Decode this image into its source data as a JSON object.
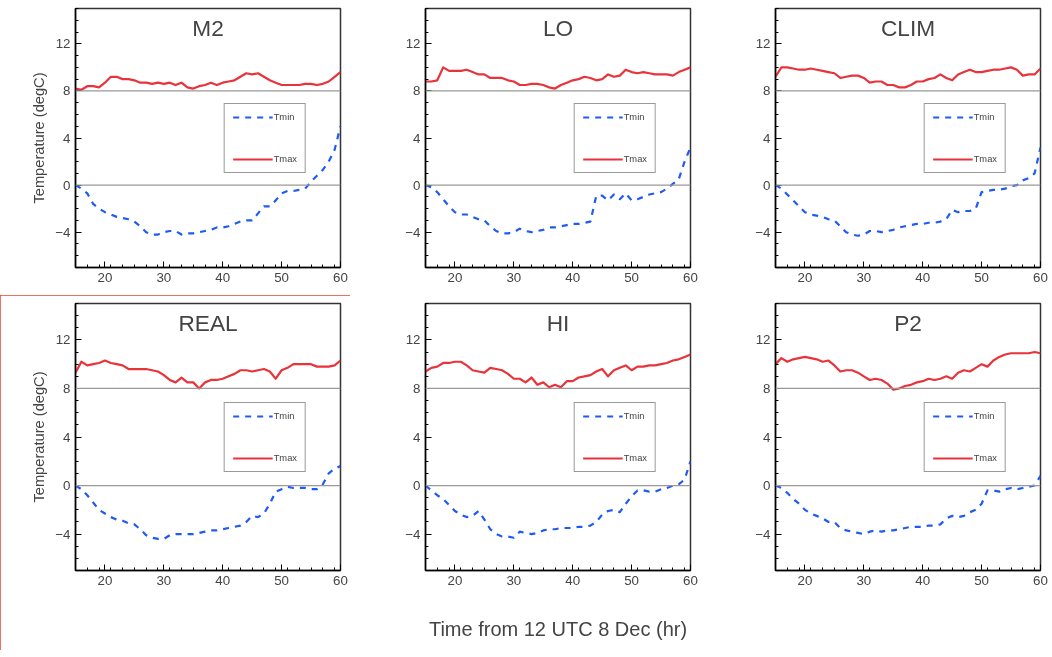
{
  "chart_data": [
    {
      "type": "line",
      "title": "M2",
      "ylabel": "Temperature (degC)",
      "x": [
        15,
        16,
        17,
        18,
        19,
        20,
        21,
        22,
        23,
        24,
        25,
        26,
        27,
        28,
        29,
        30,
        31,
        32,
        33,
        34,
        35,
        36,
        37,
        38,
        39,
        40,
        41,
        42,
        43,
        44,
        45,
        46,
        47,
        48,
        49,
        50,
        51,
        52,
        53,
        54,
        55,
        56,
        57,
        58,
        59,
        60
      ],
      "xlim": [
        15,
        60
      ],
      "ylim": [
        -7,
        15
      ],
      "xticks": [
        20,
        30,
        40,
        50,
        60
      ],
      "yticks": [
        -4,
        0,
        4,
        8,
        12
      ],
      "grid": false,
      "legend": "right",
      "marker": "none",
      "ref_lines": [
        {
          "axis": "y",
          "value": 0,
          "color": "#999999"
        },
        {
          "axis": "y",
          "value": 8,
          "color": "#999999"
        }
      ],
      "series": [
        {
          "name": "Tmin",
          "color": "#1f5af2",
          "line_style": "dashed",
          "values": [
            0,
            -0.3,
            -0.7,
            -1.6,
            -2.0,
            -2.3,
            -2.5,
            -2.7,
            -2.8,
            -2.9,
            -3.1,
            -3.5,
            -4.0,
            -4.2,
            -4.2,
            -4.0,
            -3.9,
            -3.9,
            -4.2,
            -4.1,
            -4.1,
            -4.0,
            -3.9,
            -3.8,
            -3.6,
            -3.6,
            -3.5,
            -3.3,
            -3.1,
            -3.0,
            -3.0,
            -2.4,
            -1.8,
            -1.8,
            -1.3,
            -0.7,
            -0.5,
            -0.5,
            -0.4,
            -0.3,
            0.3,
            0.8,
            1.3,
            2.0,
            3.0,
            5.0
          ]
        },
        {
          "name": "Tmax",
          "color": "#e8333a",
          "line_style": "solid",
          "values": [
            8.2,
            8.1,
            8.4,
            8.4,
            8.3,
            8.7,
            9.2,
            9.2,
            9.0,
            9.0,
            8.9,
            8.7,
            8.7,
            8.6,
            8.7,
            8.6,
            8.7,
            8.5,
            8.7,
            8.3,
            8.2,
            8.4,
            8.5,
            8.7,
            8.5,
            8.7,
            8.8,
            8.9,
            9.2,
            9.5,
            9.4,
            9.5,
            9.2,
            8.9,
            8.7,
            8.5,
            8.5,
            8.5,
            8.5,
            8.6,
            8.6,
            8.5,
            8.6,
            8.8,
            9.2,
            9.6
          ]
        }
      ]
    },
    {
      "type": "line",
      "title": "LO",
      "x": [
        15,
        16,
        17,
        18,
        19,
        20,
        21,
        22,
        23,
        24,
        25,
        26,
        27,
        28,
        29,
        30,
        31,
        32,
        33,
        34,
        35,
        36,
        37,
        38,
        39,
        40,
        41,
        42,
        43,
        44,
        45,
        46,
        47,
        48,
        49,
        50,
        51,
        52,
        53,
        54,
        55,
        56,
        57,
        58,
        59,
        60
      ],
      "xlim": [
        15,
        60
      ],
      "ylim": [
        -7,
        15
      ],
      "xticks": [
        20,
        30,
        40,
        50,
        60
      ],
      "yticks": [
        -4,
        0,
        4,
        8,
        12
      ],
      "grid": false,
      "legend": "right",
      "marker": "none",
      "ref_lines": [
        {
          "axis": "y",
          "value": 0,
          "color": "#999999"
        },
        {
          "axis": "y",
          "value": 8,
          "color": "#999999"
        }
      ],
      "series": [
        {
          "name": "Tmin",
          "color": "#1f5af2",
          "line_style": "dashed",
          "values": [
            0,
            -0.2,
            -0.6,
            -1.2,
            -1.8,
            -2.3,
            -2.5,
            -2.5,
            -2.7,
            -2.9,
            -3.0,
            -3.5,
            -3.9,
            -4.1,
            -4.1,
            -4.0,
            -3.7,
            -3.9,
            -4.0,
            -3.9,
            -3.8,
            -3.6,
            -3.6,
            -3.5,
            -3.4,
            -3.3,
            -3.3,
            -3.2,
            -3.1,
            -0.9,
            -0.9,
            -1.3,
            -0.8,
            -1.2,
            -0.7,
            -1.3,
            -1.2,
            -1.0,
            -0.8,
            -0.7,
            -0.6,
            -0.3,
            0.1,
            0.5,
            2.0,
            3.2
          ]
        },
        {
          "name": "Tmax",
          "color": "#e8333a",
          "line_style": "solid",
          "values": [
            8.8,
            8.8,
            8.9,
            10.0,
            9.7,
            9.7,
            9.7,
            9.8,
            9.6,
            9.4,
            9.4,
            9.1,
            9.1,
            9.1,
            8.9,
            8.8,
            8.5,
            8.5,
            8.6,
            8.6,
            8.5,
            8.3,
            8.2,
            8.5,
            8.7,
            8.9,
            9.0,
            9.2,
            9.1,
            8.9,
            9.0,
            9.4,
            9.2,
            9.3,
            9.8,
            9.6,
            9.5,
            9.6,
            9.5,
            9.4,
            9.4,
            9.4,
            9.3,
            9.6,
            9.8,
            10.0
          ]
        }
      ]
    },
    {
      "type": "line",
      "title": "CLIM",
      "x": [
        15,
        16,
        17,
        18,
        19,
        20,
        21,
        22,
        23,
        24,
        25,
        26,
        27,
        28,
        29,
        30,
        31,
        32,
        33,
        34,
        35,
        36,
        37,
        38,
        39,
        40,
        41,
        42,
        43,
        44,
        45,
        46,
        47,
        48,
        49,
        50,
        51,
        52,
        53,
        54,
        55,
        56,
        57,
        58,
        59,
        60
      ],
      "xlim": [
        15,
        60
      ],
      "ylim": [
        -7,
        15
      ],
      "xticks": [
        20,
        30,
        40,
        50,
        60
      ],
      "yticks": [
        -4,
        0,
        4,
        8,
        12
      ],
      "grid": false,
      "legend": "right",
      "marker": "none",
      "ref_lines": [
        {
          "axis": "y",
          "value": 0,
          "color": "#999999"
        },
        {
          "axis": "y",
          "value": 8,
          "color": "#999999"
        }
      ],
      "series": [
        {
          "name": "Tmin",
          "color": "#1f5af2",
          "line_style": "dashed",
          "values": [
            0,
            -0.3,
            -0.8,
            -1.3,
            -1.8,
            -2.3,
            -2.5,
            -2.6,
            -2.7,
            -2.9,
            -3.0,
            -3.5,
            -4.0,
            -4.2,
            -4.3,
            -4.2,
            -3.9,
            -3.9,
            -4.0,
            -3.9,
            -3.8,
            -3.6,
            -3.5,
            -3.4,
            -3.3,
            -3.3,
            -3.2,
            -3.2,
            -3.1,
            -2.9,
            -2.1,
            -2.3,
            -2.2,
            -2.2,
            -2.0,
            -0.6,
            -0.5,
            -0.4,
            -0.4,
            -0.3,
            -0.1,
            0.0,
            0.4,
            0.6,
            1.0,
            3.2
          ]
        },
        {
          "name": "Tmax",
          "color": "#e8333a",
          "line_style": "solid",
          "values": [
            9.2,
            10.0,
            10.0,
            9.9,
            9.8,
            9.8,
            9.9,
            9.8,
            9.7,
            9.6,
            9.5,
            9.1,
            9.2,
            9.3,
            9.3,
            9.1,
            8.7,
            8.8,
            8.8,
            8.5,
            8.5,
            8.3,
            8.3,
            8.5,
            8.8,
            8.8,
            9.0,
            9.1,
            9.4,
            9.1,
            8.9,
            9.4,
            9.6,
            9.8,
            9.6,
            9.6,
            9.7,
            9.8,
            9.8,
            9.9,
            10.0,
            9.8,
            9.3,
            9.4,
            9.4,
            9.9
          ]
        }
      ]
    },
    {
      "type": "line",
      "title": "REAL",
      "ylabel": "Temperature (degC)",
      "x": [
        15,
        16,
        17,
        18,
        19,
        20,
        21,
        22,
        23,
        24,
        25,
        26,
        27,
        28,
        29,
        30,
        31,
        32,
        33,
        34,
        35,
        36,
        37,
        38,
        39,
        40,
        41,
        42,
        43,
        44,
        45,
        46,
        47,
        48,
        49,
        50,
        51,
        52,
        53,
        54,
        55,
        56,
        57,
        58,
        59,
        60
      ],
      "xlim": [
        15,
        60
      ],
      "ylim": [
        -7,
        15
      ],
      "xticks": [
        20,
        30,
        40,
        50,
        60
      ],
      "yticks": [
        -4,
        0,
        4,
        8,
        12
      ],
      "grid": false,
      "legend": "right",
      "marker": "none",
      "ref_lines": [
        {
          "axis": "y",
          "value": 0,
          "color": "#999999"
        },
        {
          "axis": "y",
          "value": 8,
          "color": "#999999"
        }
      ],
      "series": [
        {
          "name": "Tmin",
          "color": "#1f5af2",
          "line_style": "dashed",
          "values": [
            0,
            -0.3,
            -0.8,
            -1.4,
            -2.0,
            -2.3,
            -2.6,
            -2.8,
            -2.9,
            -3.1,
            -3.2,
            -3.6,
            -4.1,
            -4.3,
            -4.4,
            -4.4,
            -4.1,
            -4.0,
            -4.0,
            -4.0,
            -4.0,
            -3.9,
            -3.8,
            -3.7,
            -3.7,
            -3.6,
            -3.5,
            -3.4,
            -3.3,
            -3.0,
            -2.5,
            -2.6,
            -2.3,
            -1.5,
            -0.5,
            -0.3,
            -0.1,
            -0.2,
            -0.2,
            -0.2,
            -0.3,
            -0.3,
            0.1,
            1.0,
            1.4,
            1.6
          ]
        },
        {
          "name": "Tmax",
          "color": "#e8333a",
          "line_style": "solid",
          "values": [
            9.3,
            10.2,
            9.9,
            10.0,
            10.1,
            10.3,
            10.1,
            10.0,
            9.9,
            9.6,
            9.6,
            9.6,
            9.6,
            9.5,
            9.4,
            9.1,
            8.7,
            8.5,
            8.9,
            8.5,
            8.5,
            8.0,
            8.5,
            8.7,
            8.7,
            8.8,
            9.0,
            9.2,
            9.5,
            9.5,
            9.4,
            9.5,
            9.6,
            9.4,
            8.8,
            9.5,
            9.7,
            10.0,
            10.0,
            10.0,
            10.0,
            9.8,
            9.8,
            9.8,
            9.9,
            10.3
          ]
        }
      ]
    },
    {
      "type": "line",
      "title": "HI",
      "xlabel": "Time from 12 UTC 8 Dec (hr)",
      "x": [
        15,
        16,
        17,
        18,
        19,
        20,
        21,
        22,
        23,
        24,
        25,
        26,
        27,
        28,
        29,
        30,
        31,
        32,
        33,
        34,
        35,
        36,
        37,
        38,
        39,
        40,
        41,
        42,
        43,
        44,
        45,
        46,
        47,
        48,
        49,
        50,
        51,
        52,
        53,
        54,
        55,
        56,
        57,
        58,
        59,
        60
      ],
      "xlim": [
        15,
        60
      ],
      "ylim": [
        -7,
        15
      ],
      "xticks": [
        20,
        30,
        40,
        50,
        60
      ],
      "yticks": [
        -4,
        0,
        4,
        8,
        12
      ],
      "grid": false,
      "legend": "right",
      "marker": "none",
      "ref_lines": [
        {
          "axis": "y",
          "value": 0,
          "color": "#999999"
        },
        {
          "axis": "y",
          "value": 8,
          "color": "#999999"
        }
      ],
      "series": [
        {
          "name": "Tmin",
          "color": "#1f5af2",
          "line_style": "dashed",
          "values": [
            0,
            -0.4,
            -0.8,
            -1.1,
            -1.6,
            -2.1,
            -2.4,
            -2.6,
            -2.5,
            -2.1,
            -2.8,
            -3.6,
            -4.0,
            -4.2,
            -4.2,
            -4.3,
            -3.8,
            -3.9,
            -4.0,
            -3.9,
            -3.7,
            -3.6,
            -3.6,
            -3.5,
            -3.5,
            -3.5,
            -3.4,
            -3.4,
            -3.3,
            -3.0,
            -2.4,
            -2.1,
            -2.0,
            -2.2,
            -1.5,
            -0.9,
            -0.4,
            -0.4,
            -0.5,
            -0.5,
            -0.3,
            -0.2,
            0.0,
            0.1,
            0.5,
            2.0
          ]
        },
        {
          "name": "Tmax",
          "color": "#e8333a",
          "line_style": "solid",
          "values": [
            9.4,
            9.7,
            9.8,
            10.1,
            10.1,
            10.2,
            10.2,
            9.9,
            9.5,
            9.4,
            9.3,
            9.7,
            9.6,
            9.5,
            9.2,
            8.8,
            8.8,
            8.5,
            8.9,
            8.3,
            8.5,
            8.1,
            8.3,
            8.1,
            8.6,
            8.6,
            8.9,
            9.0,
            9.1,
            9.4,
            9.6,
            9.0,
            9.5,
            9.7,
            9.9,
            9.5,
            9.8,
            9.8,
            9.9,
            9.9,
            10.0,
            10.1,
            10.3,
            10.4,
            10.6,
            10.8
          ]
        }
      ]
    },
    {
      "type": "line",
      "title": "P2",
      "x": [
        15,
        16,
        17,
        18,
        19,
        20,
        21,
        22,
        23,
        24,
        25,
        26,
        27,
        28,
        29,
        30,
        31,
        32,
        33,
        34,
        35,
        36,
        37,
        38,
        39,
        40,
        41,
        42,
        43,
        44,
        45,
        46,
        47,
        48,
        49,
        50,
        51,
        52,
        53,
        54,
        55,
        56,
        57,
        58,
        59,
        60
      ],
      "xlim": [
        15,
        60
      ],
      "ylim": [
        -7,
        15
      ],
      "xticks": [
        20,
        30,
        40,
        50,
        60
      ],
      "yticks": [
        -4,
        0,
        4,
        8,
        12
      ],
      "grid": false,
      "legend": "right",
      "marker": "none",
      "ref_lines": [
        {
          "axis": "y",
          "value": 0,
          "color": "#999999"
        },
        {
          "axis": "y",
          "value": 8,
          "color": "#999999"
        }
      ],
      "series": [
        {
          "name": "Tmin",
          "color": "#1f5af2",
          "line_style": "dashed",
          "values": [
            0,
            -0.2,
            -0.6,
            -1.1,
            -1.5,
            -2.0,
            -2.3,
            -2.5,
            -2.7,
            -3.0,
            -3.0,
            -3.5,
            -3.7,
            -3.8,
            -3.9,
            -4.0,
            -3.8,
            -3.7,
            -3.8,
            -3.7,
            -3.7,
            -3.6,
            -3.5,
            -3.4,
            -3.4,
            -3.4,
            -3.3,
            -3.3,
            -3.2,
            -2.7,
            -2.5,
            -2.6,
            -2.5,
            -2.2,
            -2.0,
            -1.5,
            -0.4,
            -0.4,
            -0.5,
            -0.3,
            -0.2,
            -0.3,
            -0.2,
            -0.1,
            0.0,
            0.8
          ]
        },
        {
          "name": "Tmax",
          "color": "#e8333a",
          "line_style": "solid",
          "values": [
            10.0,
            10.5,
            10.2,
            10.4,
            10.5,
            10.6,
            10.5,
            10.4,
            10.2,
            10.3,
            9.9,
            9.4,
            9.5,
            9.5,
            9.3,
            9.0,
            8.7,
            8.8,
            8.7,
            8.4,
            7.9,
            8.0,
            8.2,
            8.3,
            8.5,
            8.6,
            8.8,
            8.7,
            8.8,
            9.0,
            8.8,
            9.3,
            9.5,
            9.4,
            9.7,
            10.0,
            9.8,
            10.3,
            10.6,
            10.8,
            10.9,
            10.9,
            10.9,
            10.9,
            11.0,
            10.9
          ]
        }
      ]
    }
  ]
}
